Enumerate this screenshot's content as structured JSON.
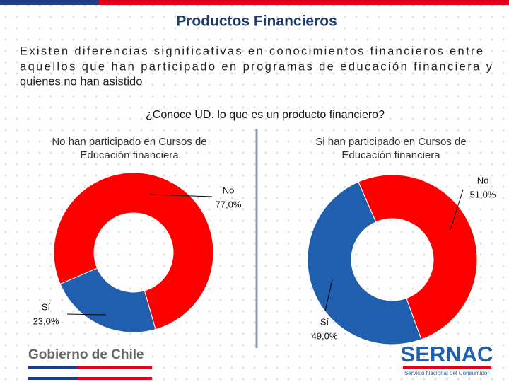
{
  "slide": {
    "title": "Productos Financieros",
    "text_lines": [
      "Existen diferencias significativas en conocimientos financieros entre",
      "aquellos que han participado en programas de educación financiera y",
      "quienes no han asistido"
    ],
    "question": "¿Conoce UD. lo que es un producto financiero?",
    "footer_left": "Gobierno de Chile",
    "footer_right": "SERNAC",
    "footer_right_sub": "Servicio Nacional del Consumidor"
  },
  "chart_data": [
    {
      "type": "donut",
      "title_lines": [
        "No han participado en Cursos de",
        "Educación financiera"
      ],
      "categories": [
        "Sí",
        "No"
      ],
      "values": [
        23,
        77
      ],
      "value_labels": [
        "23,0%",
        "77,0%"
      ],
      "colors": [
        "#1f5fae",
        "#ff0000"
      ]
    },
    {
      "type": "donut",
      "title_lines": [
        "Si han participado en Cursos de",
        "Educación financiera"
      ],
      "categories": [
        "Sí",
        "No"
      ],
      "values": [
        49,
        51
      ],
      "value_labels": [
        "49,0%",
        "51,0%"
      ],
      "colors": [
        "#1f5fae",
        "#ff0000"
      ]
    }
  ]
}
